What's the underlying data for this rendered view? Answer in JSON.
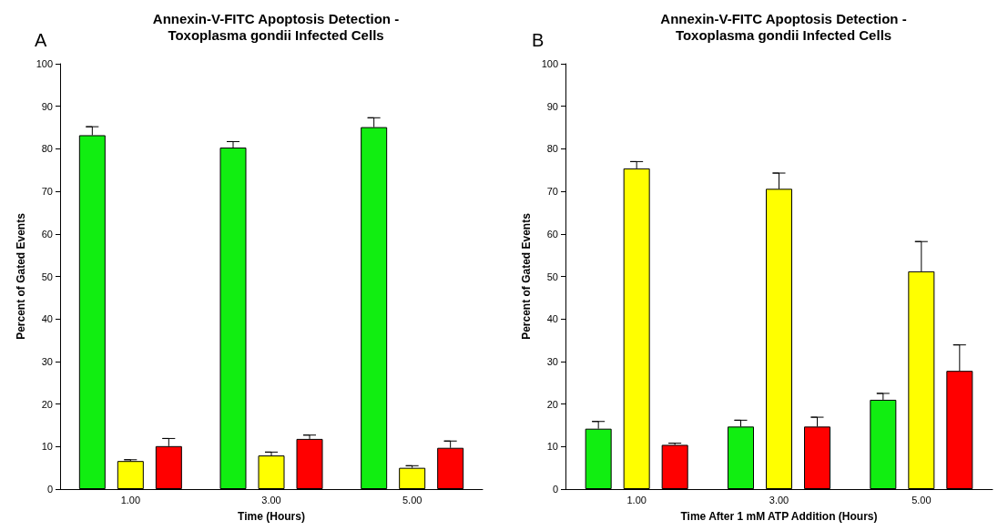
{
  "chart_data": [
    {
      "type": "bar",
      "title": "Annexin-V-FITC Apoptosis Detection -\nToxoplasma gondii Infected Cells",
      "xlabel": "Time (Hours)",
      "ylabel": "Percent of Gated Events",
      "annotations": [
        "A"
      ],
      "categories": [
        "1.00",
        "3.00",
        "5.00"
      ],
      "ylim": [
        0,
        100
      ],
      "yticks": [
        0,
        10,
        20,
        30,
        40,
        50,
        60,
        70,
        80,
        90,
        100
      ],
      "grid": false,
      "series": [
        {
          "color": "#11ee11",
          "values": [
            83.2,
            80.3,
            85.1
          ],
          "errors": [
            [
              83.2,
              85.2
            ],
            [
              80.3,
              81.7
            ],
            [
              85.1,
              87.3
            ]
          ]
        },
        {
          "color": "#ffff00",
          "values": [
            6.6,
            7.9,
            5.0
          ],
          "errors": [
            [
              6.6,
              6.9
            ],
            [
              7.9,
              8.7
            ],
            [
              5.0,
              5.5
            ]
          ]
        },
        {
          "color": "#ff0000",
          "values": [
            10.1,
            11.8,
            9.7
          ],
          "errors": [
            [
              10.1,
              11.9
            ],
            [
              11.8,
              12.7
            ],
            [
              9.7,
              11.3
            ]
          ]
        }
      ]
    },
    {
      "type": "bar",
      "title": "Annexin-V-FITC Apoptosis Detection -\nToxoplasma gondii Infected Cells",
      "xlabel": "Time After 1 mM ATP Addition (Hours)",
      "ylabel": "Percent of Gated Events",
      "annotations": [
        "B"
      ],
      "categories": [
        "1.00",
        "3.00",
        "5.00"
      ],
      "ylim": [
        0,
        100
      ],
      "yticks": [
        0,
        10,
        20,
        30,
        40,
        50,
        60,
        70,
        80,
        90,
        100
      ],
      "grid": false,
      "series": [
        {
          "color": "#11ee11",
          "values": [
            14.2,
            14.7,
            21.0
          ],
          "errors": [
            [
              14.2,
              15.9
            ],
            [
              14.7,
              16.2
            ],
            [
              21.0,
              22.5
            ]
          ]
        },
        {
          "color": "#ffff00",
          "values": [
            75.4,
            70.6,
            51.2
          ],
          "errors": [
            [
              75.4,
              77.0
            ],
            [
              70.6,
              74.3
            ],
            [
              51.2,
              58.2
            ]
          ]
        },
        {
          "color": "#ff0000",
          "values": [
            10.4,
            14.7,
            27.8
          ],
          "errors": [
            [
              10.4,
              10.8
            ],
            [
              14.7,
              16.9
            ],
            [
              27.8,
              33.9
            ]
          ]
        }
      ]
    }
  ]
}
